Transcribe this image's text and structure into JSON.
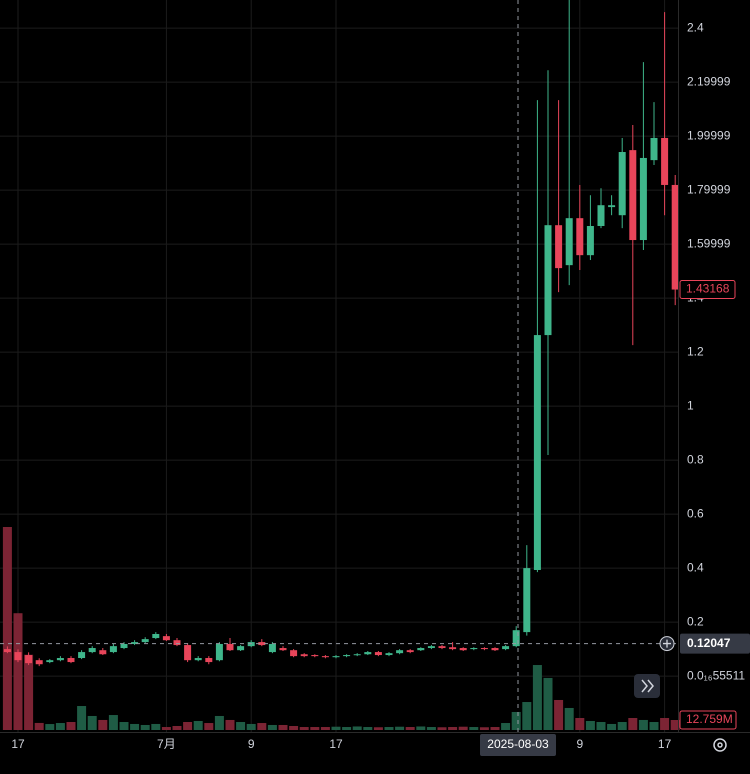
{
  "chart_data": {
    "type": "candlestick",
    "categories": [
      null,
      "17",
      null,
      null,
      null,
      null,
      null,
      null,
      null,
      null,
      null,
      null,
      null,
      null,
      null,
      "7月",
      null,
      null,
      null,
      null,
      null,
      null,
      null,
      "9",
      null,
      null,
      null,
      null,
      null,
      null,
      null,
      "17",
      null,
      null,
      null,
      null,
      null,
      null,
      null,
      null,
      null,
      null,
      null,
      null,
      null,
      null,
      null,
      null,
      null,
      null,
      null,
      null,
      null,
      null,
      "9",
      null,
      null,
      null,
      null,
      null,
      null,
      null,
      "17",
      null
    ],
    "open": [
      0.1,
      0.089,
      0.078,
      0.059,
      0.052,
      0.059,
      0.067,
      0.067,
      0.089,
      0.096,
      0.089,
      0.104,
      0.119,
      0.126,
      0.141,
      0.148,
      0.133,
      0.115,
      0.059,
      0.067,
      0.059,
      0.119,
      0.096,
      0.111,
      0.126,
      0.089,
      0.104,
      0.096,
      0.081,
      0.078,
      0.074,
      0.07,
      0.074,
      0.078,
      0.081,
      0.089,
      0.078,
      0.085,
      0.096,
      0.096,
      0.104,
      0.111,
      0.107,
      0.104,
      0.1,
      0.104,
      0.104,
      0.1,
      0.111,
      0.163,
      0.393,
      1.263,
      1.67,
      1.522,
      1.696,
      1.559,
      1.667,
      1.737,
      1.707,
      1.948,
      1.615,
      1.911,
      1.993,
      1.819
    ],
    "high": [
      0.11,
      0.099,
      0.088,
      0.066,
      0.063,
      0.074,
      0.074,
      0.096,
      0.111,
      0.104,
      0.119,
      0.126,
      0.133,
      0.144,
      0.163,
      0.156,
      0.141,
      0.122,
      0.074,
      0.074,
      0.126,
      0.141,
      0.115,
      0.133,
      0.137,
      0.126,
      0.111,
      0.1,
      0.085,
      0.081,
      0.078,
      0.078,
      0.081,
      0.085,
      0.093,
      0.093,
      0.089,
      0.1,
      0.1,
      0.107,
      0.115,
      0.115,
      0.126,
      0.107,
      0.107,
      0.107,
      0.107,
      0.115,
      0.185,
      0.485,
      2.133,
      2.244,
      2.133,
      2.504,
      1.819,
      1.781,
      1.807,
      1.781,
      1.993,
      2.041,
      2.274,
      2.126,
      2.459,
      1.856
    ],
    "low": [
      0.085,
      0.052,
      0.041,
      0.037,
      0.048,
      0.055,
      0.048,
      0.063,
      0.085,
      0.078,
      0.085,
      0.1,
      0.115,
      0.122,
      0.137,
      0.13,
      0.111,
      0.052,
      0.055,
      0.044,
      0.055,
      0.093,
      0.093,
      0.107,
      0.111,
      0.085,
      0.093,
      0.07,
      0.07,
      0.07,
      0.066,
      0.066,
      0.07,
      0.074,
      0.078,
      0.074,
      0.074,
      0.081,
      0.085,
      0.093,
      0.1,
      0.1,
      0.096,
      0.093,
      0.096,
      0.096,
      0.093,
      0.096,
      0.107,
      0.15,
      0.385,
      0.819,
      1.422,
      1.448,
      1.504,
      1.541,
      1.659,
      1.707,
      1.659,
      1.226,
      1.578,
      1.893,
      1.707,
      1.374
    ],
    "close": [
      0.089,
      0.059,
      0.048,
      0.044,
      0.059,
      0.067,
      0.052,
      0.089,
      0.104,
      0.081,
      0.111,
      0.119,
      0.126,
      0.137,
      0.156,
      0.133,
      0.115,
      0.059,
      0.067,
      0.052,
      0.119,
      0.096,
      0.111,
      0.126,
      0.115,
      0.119,
      0.096,
      0.074,
      0.074,
      0.074,
      0.07,
      0.074,
      0.078,
      0.081,
      0.089,
      0.078,
      0.085,
      0.096,
      0.089,
      0.104,
      0.111,
      0.104,
      0.1,
      0.096,
      0.104,
      0.1,
      0.096,
      0.111,
      0.17,
      0.4,
      1.263,
      1.67,
      1.511,
      1.696,
      1.559,
      1.667,
      1.744,
      1.744,
      1.941,
      1.615,
      1.919,
      1.993,
      1.819,
      1.43168
    ],
    "volume": [
      259000000,
      149000000,
      96000000,
      9000000,
      7600000,
      8900000,
      10200000,
      30600000,
      17900000,
      12800000,
      19100000,
      10200000,
      7700000,
      6400000,
      7700000,
      3800000,
      5100000,
      10200000,
      11500000,
      8900000,
      17900000,
      12800000,
      10200000,
      7700000,
      8900000,
      6400000,
      6400000,
      5100000,
      3800000,
      3800000,
      3800000,
      4200000,
      3800000,
      4500000,
      3800000,
      3500000,
      3800000,
      4200000,
      3800000,
      4500000,
      3800000,
      3500000,
      3800000,
      4200000,
      3800000,
      3500000,
      3800000,
      8900000,
      23000000,
      35700000,
      82900000,
      66400000,
      38300000,
      28100000,
      15300000,
      11500000,
      10200000,
      7700000,
      10200000,
      15300000,
      12800000,
      10200000,
      15300000,
      12759000
    ],
    "volume_last_label": "12.759M",
    "up_color": "#3fb68b",
    "down_color": "#e8455a",
    "volume_up_color": "#1f5c45",
    "volume_down_color": "#7c2434",
    "ylim": [
      -0.207,
      2.504
    ],
    "yticks": [
      {
        "value": 5.5511e-17,
        "label": "0.0₁₆55511"
      },
      0.2,
      0.4,
      0.6,
      0.8,
      1,
      1.2,
      1.4,
      1.59999,
      1.79999,
      1.99999,
      2.19999,
      2.4
    ],
    "grid": true,
    "crosshair": {
      "date": "2025-08-03",
      "price": 0.12047
    }
  }
}
